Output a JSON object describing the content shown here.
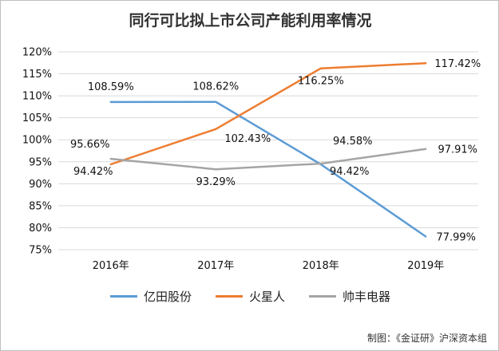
{
  "chart_data": {
    "type": "line",
    "title": "同行可比拟上市公司产能利用率情况",
    "categories": [
      "2016年",
      "2017年",
      "2018年",
      "2019年"
    ],
    "ylim": [
      75,
      120
    ],
    "yticks": [
      75,
      80,
      85,
      90,
      95,
      100,
      105,
      110,
      115,
      120
    ],
    "ytick_labels": [
      "75%",
      "80%",
      "85%",
      "90%",
      "95%",
      "100%",
      "105%",
      "110%",
      "115%",
      "120%"
    ],
    "grid": true,
    "legend_position": "bottom",
    "series": [
      {
        "name": "亿田股份",
        "color": "#5b9bd5",
        "values": [
          108.59,
          108.62,
          94.42,
          77.99
        ],
        "labels": [
          "108.59%",
          "108.62%",
          "94.42%",
          "77.99%"
        ]
      },
      {
        "name": "火星人",
        "color": "#ed7d31",
        "values": [
          94.42,
          102.43,
          116.25,
          117.42
        ],
        "labels": [
          "94.42%",
          "102.43%",
          "116.25%",
          "117.42%"
        ]
      },
      {
        "name": "帅丰电器",
        "color": "#a5a5a5",
        "values": [
          95.66,
          93.29,
          94.58,
          97.91
        ],
        "labels": [
          "95.66%",
          "93.29%",
          "94.58%",
          "97.91%"
        ]
      }
    ]
  },
  "source_note": "制图：《金证研》沪深资本组"
}
